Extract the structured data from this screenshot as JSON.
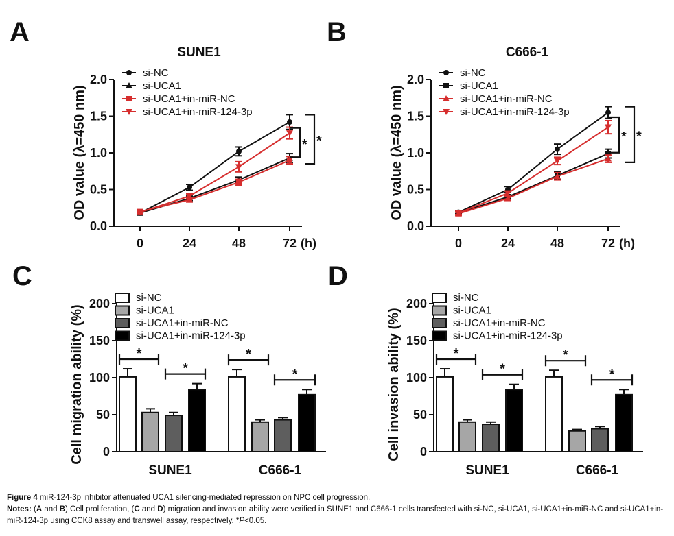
{
  "caption": {
    "figure_label": "Figure 4",
    "figure_text": " miR-124-3p inhibitor attenuated UCA1 silencing-mediated repression on NPC cell progression.",
    "notes_label": "Notes:",
    "notes_open": " (",
    "notes_A": "A",
    "notes_and1": " and ",
    "notes_B": "B",
    "notes_mid1": ") Cell proliferation, (",
    "notes_C": "C",
    "notes_and2": " and ",
    "notes_D": "D",
    "notes_rest": ") migration and invasion ability were verified in SUNE1 and C666-1 cells transfected with si-NC, si-UCA1, si-UCA1+in-miR-NC and si-UCA1+in-miR-124-3p using CCK8 assay and transwell assay, respectively. *",
    "notes_p": "P",
    "notes_end": "<0.05."
  },
  "chart_data": [
    {
      "id": "A",
      "type": "line",
      "title": "SUNE1",
      "xlabel": "(h)",
      "ylabel": "OD value (λ=450 nm)",
      "x": [
        0,
        24,
        48,
        72
      ],
      "x_ticks": [
        "0",
        "24",
        "48",
        "72"
      ],
      "y_ticks": [
        "0.0",
        "0.5",
        "1.0",
        "1.5",
        "2.0"
      ],
      "ylim": [
        0,
        2.0
      ],
      "series": [
        {
          "name": "si-NC",
          "color": "#111111",
          "marker": "circle",
          "values": [
            0.18,
            0.53,
            1.02,
            1.42
          ],
          "errors": [
            0.02,
            0.04,
            0.06,
            0.1
          ]
        },
        {
          "name": "si-UCA1",
          "color": "#111111",
          "marker": "triangle-up",
          "values": [
            0.18,
            0.38,
            0.63,
            0.93
          ],
          "errors": [
            0.02,
            0.03,
            0.04,
            0.06
          ]
        },
        {
          "name": "si-UCA1+in-miR-NC",
          "color": "#d62e2e",
          "marker": "square",
          "values": [
            0.2,
            0.36,
            0.6,
            0.9
          ],
          "errors": [
            0.02,
            0.03,
            0.04,
            0.05
          ]
        },
        {
          "name": "si-UCA1+in-miR-124-3p",
          "color": "#d62e2e",
          "marker": "triangle-down",
          "values": [
            0.19,
            0.41,
            0.81,
            1.27
          ],
          "errors": [
            0.02,
            0.03,
            0.07,
            0.08
          ]
        }
      ],
      "significance": [
        "*",
        "*"
      ]
    },
    {
      "id": "B",
      "type": "line",
      "title": "C666-1",
      "xlabel": "(h)",
      "ylabel": "OD value (λ=450 nm)",
      "x": [
        0,
        24,
        48,
        72
      ],
      "x_ticks": [
        "0",
        "24",
        "48",
        "72"
      ],
      "y_ticks": [
        "0.0",
        "0.5",
        "1.0",
        "1.5",
        "2.0"
      ],
      "ylim": [
        0,
        2.0
      ],
      "series": [
        {
          "name": "si-NC",
          "color": "#111111",
          "marker": "circle",
          "values": [
            0.19,
            0.5,
            1.05,
            1.55
          ],
          "errors": [
            0.02,
            0.04,
            0.07,
            0.08
          ]
        },
        {
          "name": "si-UCA1",
          "color": "#111111",
          "marker": "square",
          "values": [
            0.18,
            0.4,
            0.69,
            0.99
          ],
          "errors": [
            0.02,
            0.03,
            0.05,
            0.06
          ]
        },
        {
          "name": "si-UCA1+in-miR-NC",
          "color": "#d62e2e",
          "marker": "triangle-up",
          "values": [
            0.17,
            0.38,
            0.68,
            0.92
          ],
          "errors": [
            0.02,
            0.03,
            0.05,
            0.05
          ]
        },
        {
          "name": "si-UCA1+in-miR-124-3p",
          "color": "#d62e2e",
          "marker": "triangle-down",
          "values": [
            0.18,
            0.45,
            0.89,
            1.35
          ],
          "errors": [
            0.02,
            0.03,
            0.05,
            0.09
          ]
        }
      ],
      "significance": [
        "*",
        "*"
      ]
    },
    {
      "id": "C",
      "type": "bar",
      "ylabel": "Cell migration ability (%)",
      "categories": [
        "SUNE1",
        "C666-1"
      ],
      "y_ticks": [
        "0",
        "50",
        "100",
        "150",
        "200"
      ],
      "ylim": [
        0,
        200
      ],
      "series": [
        {
          "name": "si-NC",
          "fill": "#ffffff",
          "values": [
            101,
            101
          ],
          "errors": [
            11,
            10
          ]
        },
        {
          "name": "si-UCA1",
          "fill": "#a6a6a6",
          "values": [
            53,
            40
          ],
          "errors": [
            5,
            3
          ]
        },
        {
          "name": "si-UCA1+in-miR-NC",
          "fill": "#5e5e5e",
          "values": [
            49,
            43
          ],
          "errors": [
            4,
            3
          ]
        },
        {
          "name": "si-UCA1+in-miR-124-3p",
          "fill": "#000000",
          "values": [
            84,
            77
          ],
          "errors": [
            8,
            7
          ]
        }
      ],
      "significance": [
        "*",
        "*",
        "*",
        "*"
      ]
    },
    {
      "id": "D",
      "type": "bar",
      "ylabel": "Cell invasion ability (%)",
      "categories": [
        "SUNE1",
        "C666-1"
      ],
      "y_ticks": [
        "0",
        "50",
        "100",
        "150",
        "200"
      ],
      "ylim": [
        0,
        200
      ],
      "series": [
        {
          "name": "si-NC",
          "fill": "#ffffff",
          "values": [
            101,
            101
          ],
          "errors": [
            11,
            9
          ]
        },
        {
          "name": "si-UCA1",
          "fill": "#a6a6a6",
          "values": [
            40,
            28
          ],
          "errors": [
            3,
            2
          ]
        },
        {
          "name": "si-UCA1+in-miR-NC",
          "fill": "#5e5e5e",
          "values": [
            37,
            31
          ],
          "errors": [
            3,
            3
          ]
        },
        {
          "name": "si-UCA1+in-miR-124-3p",
          "fill": "#000000",
          "values": [
            84,
            77
          ],
          "errors": [
            7,
            7
          ]
        }
      ],
      "significance": [
        "*",
        "*",
        "*",
        "*"
      ]
    }
  ]
}
